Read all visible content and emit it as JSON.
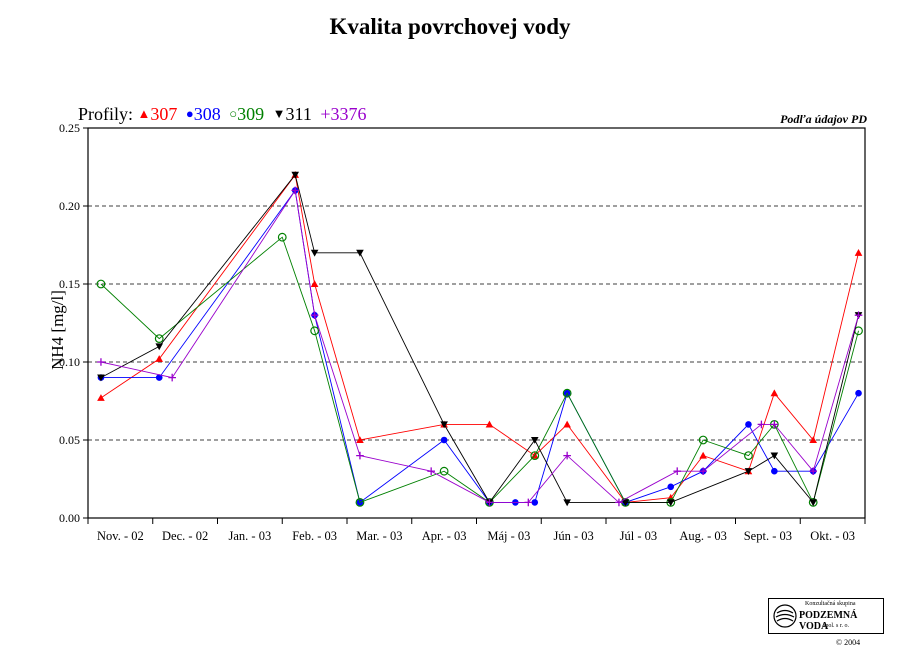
{
  "chart_data": {
    "type": "line",
    "title": "Kvalita povrchovej vody",
    "ylabel": "NH4 [mg/l]",
    "ylim": [
      0,
      0.25
    ],
    "yticks": [
      "0.00",
      "0.05",
      "0.10",
      "0.15",
      "0.20",
      "0.25"
    ],
    "grid": "horizontal dashed",
    "legend_prefix": "Profily:",
    "legend_placement": "top-left",
    "source_note": "Podľa údajov PD",
    "categories": [
      "Nov. - 02",
      "Dec. - 02",
      "Jan. - 03",
      "Feb. - 03",
      "Mar. - 03",
      "Apr. - 03",
      "Máj - 03",
      "Jún - 03",
      "Júl - 03",
      "Aug. - 03",
      "Sept. - 03",
      "Okt. - 03"
    ],
    "series": [
      {
        "name": "307",
        "color": "#ff0000",
        "marker": "triangle-up",
        "points": [
          [
            0.2,
            0.077
          ],
          [
            1.1,
            0.102
          ],
          [
            3.2,
            0.22
          ],
          [
            3.5,
            0.15
          ],
          [
            4.2,
            0.05
          ],
          [
            5.5,
            0.06
          ],
          [
            6.2,
            0.06
          ],
          [
            6.9,
            0.04
          ],
          [
            7.4,
            0.06
          ],
          [
            8.3,
            0.01
          ],
          [
            9.0,
            0.013
          ],
          [
            9.5,
            0.04
          ],
          [
            10.2,
            0.03
          ],
          [
            10.6,
            0.08
          ],
          [
            11.2,
            0.05
          ],
          [
            11.9,
            0.17
          ]
        ]
      },
      {
        "name": "308",
        "color": "#0000ff",
        "marker": "circle-filled",
        "points": [
          [
            0.2,
            0.09
          ],
          [
            1.1,
            0.09
          ],
          [
            3.2,
            0.21
          ],
          [
            3.5,
            0.13
          ],
          [
            4.2,
            0.01
          ],
          [
            5.5,
            0.05
          ],
          [
            6.2,
            0.01
          ],
          [
            6.6,
            0.01
          ],
          [
            6.9,
            0.01
          ],
          [
            7.4,
            0.08
          ],
          [
            8.3,
            0.01
          ],
          [
            9.0,
            0.02
          ],
          [
            9.5,
            0.03
          ],
          [
            10.2,
            0.06
          ],
          [
            10.6,
            0.03
          ],
          [
            11.2,
            0.03
          ],
          [
            11.9,
            0.08
          ]
        ]
      },
      {
        "name": "309",
        "color": "#008000",
        "marker": "circle-open",
        "points": [
          [
            0.2,
            0.15
          ],
          [
            1.1,
            0.115
          ],
          [
            3.0,
            0.18
          ],
          [
            3.5,
            0.12
          ],
          [
            4.2,
            0.01
          ],
          [
            5.5,
            0.03
          ],
          [
            6.2,
            0.01
          ],
          [
            6.9,
            0.04
          ],
          [
            7.4,
            0.08
          ],
          [
            8.3,
            0.01
          ],
          [
            9.0,
            0.01
          ],
          [
            9.5,
            0.05
          ],
          [
            10.2,
            0.04
          ],
          [
            10.6,
            0.06
          ],
          [
            11.2,
            0.01
          ],
          [
            11.9,
            0.12
          ]
        ]
      },
      {
        "name": "311",
        "color": "#000000",
        "marker": "triangle-down",
        "points": [
          [
            0.2,
            0.09
          ],
          [
            1.1,
            0.11
          ],
          [
            3.2,
            0.22
          ],
          [
            3.5,
            0.17
          ],
          [
            4.2,
            0.17
          ],
          [
            5.5,
            0.06
          ],
          [
            6.2,
            0.01
          ],
          [
            6.9,
            0.05
          ],
          [
            7.4,
            0.01
          ],
          [
            8.3,
            0.01
          ],
          [
            9.0,
            0.01
          ],
          [
            10.2,
            0.03
          ],
          [
            10.6,
            0.04
          ],
          [
            11.2,
            0.01
          ],
          [
            11.9,
            0.13
          ]
        ]
      },
      {
        "name": "3376",
        "color": "#9900cc",
        "marker": "plus",
        "points": [
          [
            0.2,
            0.1
          ],
          [
            1.3,
            0.09
          ],
          [
            3.2,
            0.21
          ],
          [
            3.5,
            0.13
          ],
          [
            4.2,
            0.04
          ],
          [
            5.3,
            0.03
          ],
          [
            6.2,
            0.01
          ],
          [
            6.8,
            0.01
          ],
          [
            7.4,
            0.04
          ],
          [
            8.2,
            0.01
          ],
          [
            9.1,
            0.03
          ],
          [
            9.5,
            0.03
          ],
          [
            10.4,
            0.06
          ],
          [
            10.6,
            0.06
          ],
          [
            11.2,
            0.03
          ],
          [
            11.9,
            0.13
          ]
        ]
      }
    ]
  },
  "logo": {
    "line1": "Konzultačná skupina",
    "line2": "PODZEMNÁ VODA",
    "line3": "spol. s r. o.",
    "copyright": "© 2004"
  }
}
